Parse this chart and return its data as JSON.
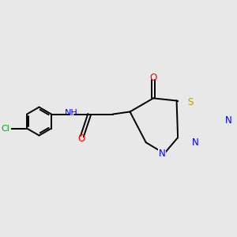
{
  "background_color": "#e8e8e8",
  "bond_color": "#000000",
  "bond_lw": 1.4,
  "atom_colors": {
    "C": "#000000",
    "N": "#0000ff",
    "O": "#ff0000",
    "S": "#b8a000",
    "Cl": "#00aa00",
    "H": "#008080"
  },
  "figsize": [
    3.0,
    3.0
  ],
  "dpi": 100
}
